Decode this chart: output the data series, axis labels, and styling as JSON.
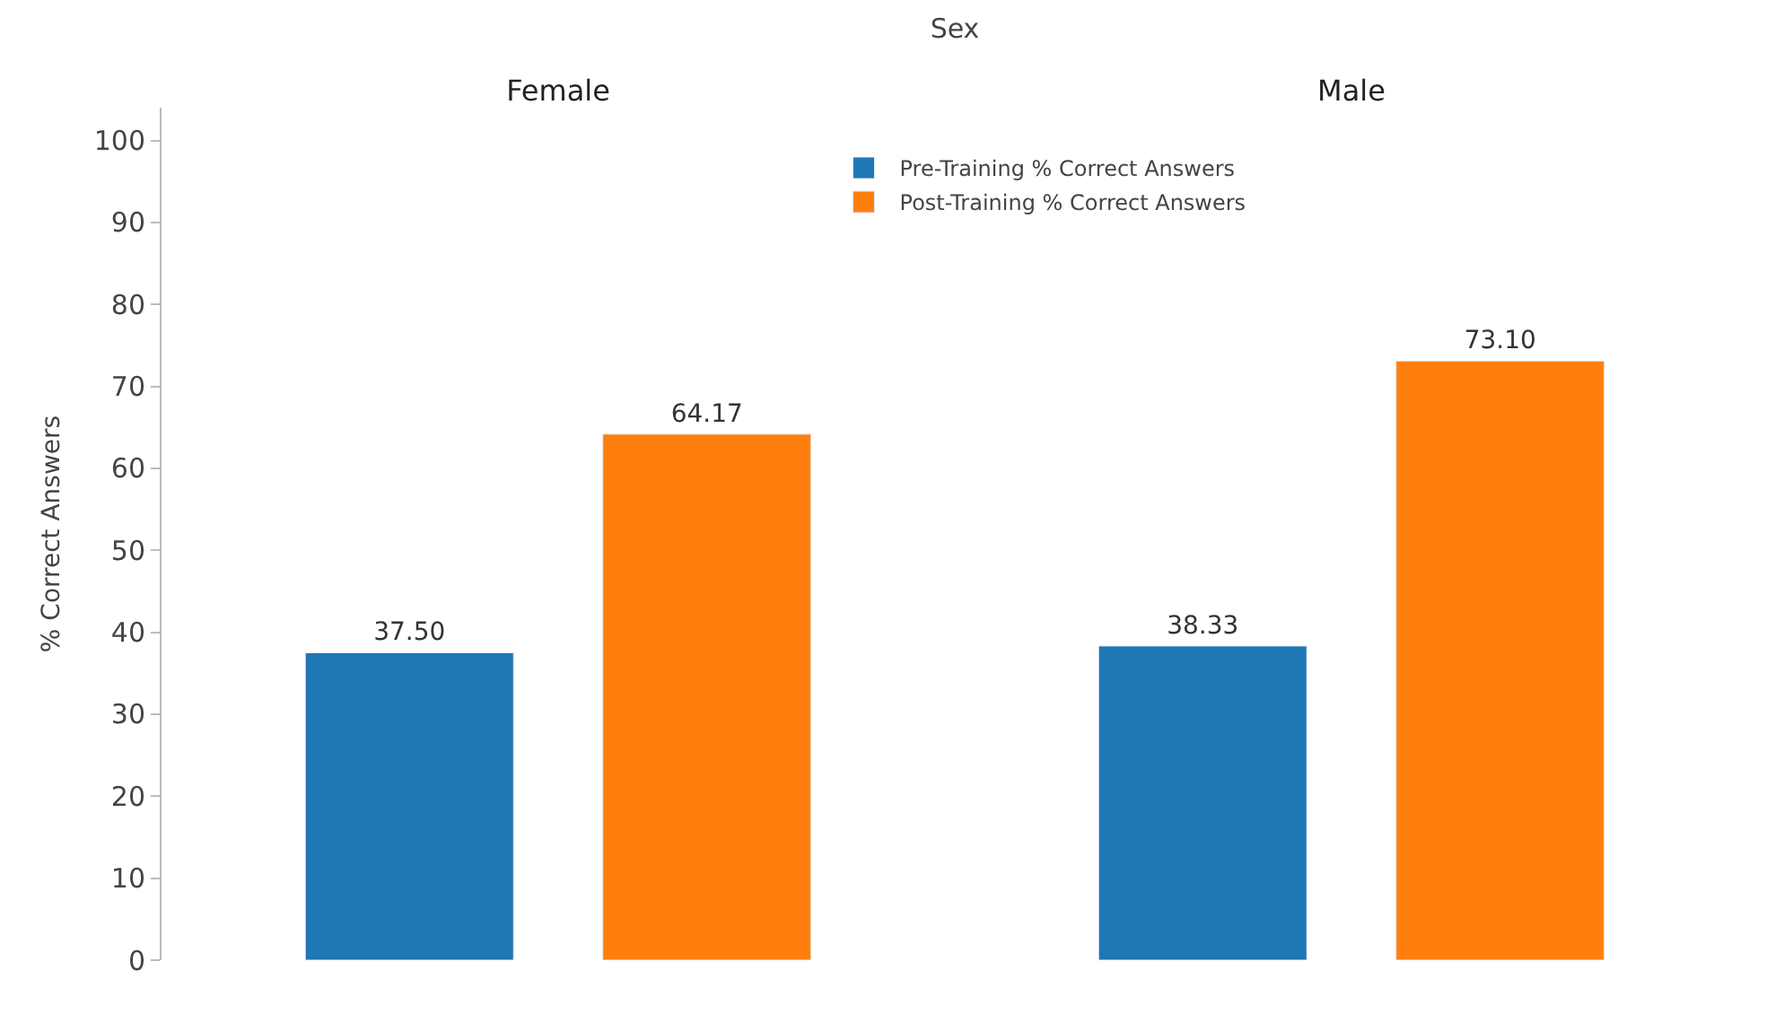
{
  "chart_data": {
    "type": "bar",
    "xlabel": "Sex",
    "ylabel": "% Correct Answers",
    "categories": [
      "Female",
      "Male"
    ],
    "series": [
      {
        "name": "Pre-Training % Correct Answers",
        "color": "#1f77b4",
        "values": [
          37.5,
          38.33
        ],
        "value_labels": [
          "37.50",
          "38.33"
        ]
      },
      {
        "name": "Post-Training % Correct Answers",
        "color": "#ff7f0e",
        "values": [
          64.17,
          73.1
        ],
        "value_labels": [
          "64.17",
          "73.10"
        ]
      }
    ],
    "ylim": [
      0,
      104
    ],
    "yticks": [
      0,
      10,
      20,
      30,
      40,
      50,
      60,
      70,
      80,
      90,
      100
    ],
    "legend": "top"
  }
}
